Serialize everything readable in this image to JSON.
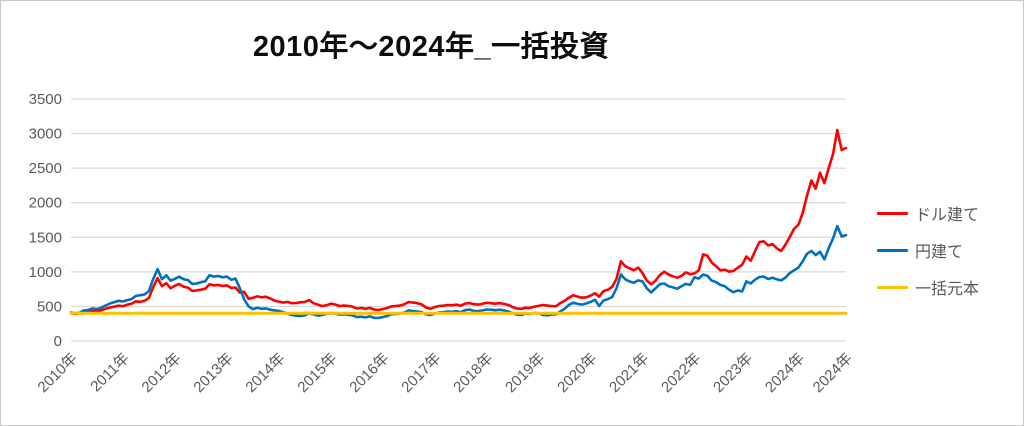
{
  "title": "2010年～2024年_一括投資",
  "legend": [
    {
      "label": "ドル建て",
      "color": "#FF0000"
    },
    {
      "label": "円建て",
      "color": "#0070C0"
    },
    {
      "label": "一括元本",
      "color": "#FFC000"
    }
  ],
  "axis_colors": {
    "tick_label": "#595959",
    "gridline": "#D9D9D9"
  },
  "chart_data": {
    "type": "line",
    "title": "2010年～2024年_一括投資",
    "x_unit": "month",
    "x_start": "2010-01",
    "x_end": "2024-12",
    "x_tick_labels": [
      "2010年",
      "2011年",
      "2012年",
      "2013年",
      "2014年",
      "2015年",
      "2016年",
      "2017年",
      "2018年",
      "2019年",
      "2020年",
      "2021年",
      "2022年",
      "2023年",
      "2024年",
      "2024年"
    ],
    "x_tick_months": [
      0,
      12,
      24,
      36,
      48,
      60,
      72,
      84,
      96,
      108,
      120,
      132,
      144,
      156,
      168,
      179
    ],
    "y_ticks": [
      0,
      500,
      1000,
      1500,
      2000,
      2500,
      3000,
      3500
    ],
    "ylim": [
      0,
      3500
    ],
    "grid": true,
    "legend_position": "right",
    "series": [
      {
        "name": "ドル建て",
        "color": "#FF0000",
        "values": [
          400,
          390,
          402,
          424,
          414,
          436,
          428,
          446,
          466,
          484,
          498,
          510,
          504,
          526,
          540,
          574,
          566,
          582,
          624,
          780,
          910,
          792,
          836,
          762,
          800,
          824,
          786,
          772,
          724,
          732,
          742,
          754,
          820,
          804,
          812,
          794,
          806,
          766,
          774,
          700,
          712,
          610,
          624,
          646,
          630,
          640,
          614,
          584,
          570,
          556,
          566,
          546,
          550,
          560,
          566,
          592,
          546,
          526,
          506,
          516,
          540,
          528,
          506,
          512,
          508,
          498,
          468,
          478,
          466,
          478,
          456,
          448,
          462,
          476,
          500,
          506,
          512,
          532,
          564,
          556,
          546,
          530,
          486,
          466,
          490,
          506,
          510,
          520,
          516,
          526,
          510,
          540,
          550,
          532,
          526,
          536,
          552,
          546,
          540,
          546,
          536,
          520,
          490,
          470,
          466,
          480,
          478,
          496,
          508,
          520,
          512,
          506,
          502,
          546,
          582,
          626,
          662,
          640,
          626,
          632,
          656,
          692,
          640,
          722,
          742,
          782,
          900,
          1152,
          1082,
          1052,
          1022,
          1062,
          982,
          872,
          822,
          872,
          952,
          1002,
          962,
          936,
          916,
          942,
          992,
          966,
          976,
          1022,
          1252,
          1232,
          1132,
          1082,
          1022,
          1032,
          1002,
          1012,
          1062,
          1102,
          1222,
          1162,
          1302,
          1432,
          1442,
          1382,
          1402,
          1342,
          1302,
          1392,
          1502,
          1622,
          1682,
          1852,
          2102,
          2322,
          2202,
          2432,
          2282,
          2502,
          2702,
          3052,
          2762,
          2792
        ]
      },
      {
        "name": "円建て",
        "color": "#0070C0",
        "values": [
          412,
          400,
          410,
          442,
          448,
          472,
          462,
          482,
          512,
          542,
          562,
          582,
          572,
          592,
          606,
          652,
          662,
          672,
          722,
          900,
          1040,
          892,
          950,
          872,
          900,
          930,
          892,
          882,
          824,
          832,
          850,
          862,
          950,
          932,
          940,
          922,
          932,
          886,
          902,
          762,
          602,
          502,
          462,
          482,
          466,
          472,
          452,
          442,
          436,
          416,
          396,
          376,
          366,
          362,
          372,
          396,
          386,
          366,
          376,
          392,
          402,
          396,
          382,
          386,
          380,
          372,
          346,
          352,
          342,
          356,
          336,
          332,
          346,
          362,
          386,
          392,
          396,
          412,
          442,
          432,
          426,
          416,
          386,
          376,
          396,
          412,
          416,
          426,
          422,
          432,
          416,
          446,
          456,
          436,
          432,
          442,
          456,
          452,
          446,
          452,
          442,
          426,
          402,
          382,
          376,
          396,
          392,
          406,
          402,
          376,
          372,
          382,
          386,
          426,
          466,
          522,
          556,
          536,
          526,
          542,
          566,
          596,
          506,
          586,
          606,
          636,
          762,
          962,
          892,
          862,
          842,
          876,
          862,
          762,
          702,
          762,
          822,
          832,
          792,
          776,
          756,
          792,
          826,
          812,
          922,
          902,
          962,
          942,
          872,
          852,
          812,
          792,
          742,
          706,
          732,
          716,
          862,
          832,
          886,
          926,
          932,
          896,
          916,
          892,
          876,
          916,
          982,
          1022,
          1062,
          1152,
          1262,
          1302,
          1242,
          1292,
          1182,
          1342,
          1482,
          1662,
          1512,
          1532
        ]
      },
      {
        "name": "一括元本",
        "color": "#FFC000",
        "constant": 400
      }
    ]
  }
}
